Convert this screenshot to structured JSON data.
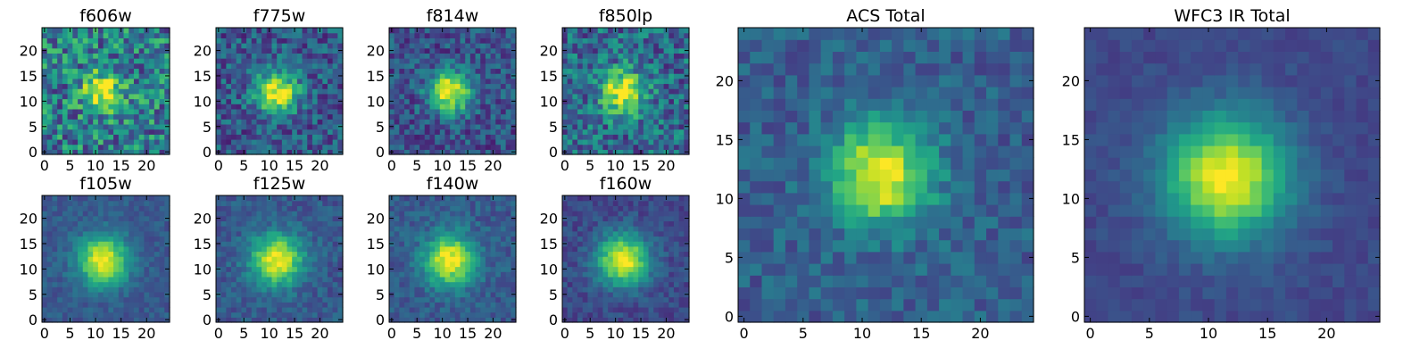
{
  "chart_data": [
    {
      "type": "heatmap",
      "title": "f606w",
      "xlim": [
        0,
        24
      ],
      "ylim": [
        0,
        24
      ],
      "xticks": [
        "0",
        "5",
        "10",
        "15",
        "20"
      ],
      "yticks": [
        "0",
        "5",
        "10",
        "15",
        "20"
      ],
      "grid": false,
      "colormap": "viridis",
      "peak": [
        11.6,
        12.0
      ],
      "sigma": 2.7,
      "noise": 0.3,
      "background": 0.42,
      "seed": 11
    },
    {
      "type": "heatmap",
      "title": "f775w",
      "xlim": [
        0,
        24
      ],
      "ylim": [
        0,
        24
      ],
      "xticks": [
        "0",
        "5",
        "10",
        "15",
        "20"
      ],
      "yticks": [
        "0",
        "5",
        "10",
        "15",
        "20"
      ],
      "grid": false,
      "colormap": "viridis",
      "peak": [
        11.5,
        11.8
      ],
      "sigma": 2.9,
      "noise": 0.2,
      "background": 0.28,
      "seed": 22
    },
    {
      "type": "heatmap",
      "title": "f814w",
      "xlim": [
        0,
        24
      ],
      "ylim": [
        0,
        24
      ],
      "xticks": [
        "0",
        "5",
        "10",
        "15",
        "20"
      ],
      "yticks": [
        "0",
        "5",
        "10",
        "15",
        "20"
      ],
      "grid": false,
      "colormap": "viridis",
      "peak": [
        11.5,
        11.8
      ],
      "sigma": 2.9,
      "noise": 0.18,
      "background": 0.25,
      "seed": 33
    },
    {
      "type": "heatmap",
      "title": "f850lp",
      "xlim": [
        0,
        24
      ],
      "ylim": [
        0,
        24
      ],
      "xticks": [
        "0",
        "5",
        "10",
        "15",
        "20"
      ],
      "yticks": [
        "0",
        "5",
        "10",
        "15",
        "20"
      ],
      "grid": false,
      "colormap": "viridis",
      "peak": [
        11.4,
        11.8
      ],
      "sigma": 3.0,
      "noise": 0.24,
      "background": 0.34,
      "seed": 44
    },
    {
      "type": "heatmap",
      "title": "f105w",
      "xlim": [
        0,
        24
      ],
      "ylim": [
        0,
        24
      ],
      "xticks": [
        "0",
        "5",
        "10",
        "15",
        "20"
      ],
      "yticks": [
        "0",
        "5",
        "10",
        "15",
        "20"
      ],
      "grid": false,
      "colormap": "viridis",
      "peak": [
        11.5,
        11.8
      ],
      "sigma": 3.4,
      "noise": 0.08,
      "background": 0.28,
      "seed": 55
    },
    {
      "type": "heatmap",
      "title": "f125w",
      "xlim": [
        0,
        24
      ],
      "ylim": [
        0,
        24
      ],
      "xticks": [
        "0",
        "5",
        "10",
        "15",
        "20"
      ],
      "yticks": [
        "0",
        "5",
        "10",
        "15",
        "20"
      ],
      "grid": false,
      "colormap": "viridis",
      "peak": [
        11.5,
        11.8
      ],
      "sigma": 3.5,
      "noise": 0.1,
      "background": 0.28,
      "seed": 66
    },
    {
      "type": "heatmap",
      "title": "f140w",
      "xlim": [
        0,
        24
      ],
      "ylim": [
        0,
        24
      ],
      "xticks": [
        "0",
        "5",
        "10",
        "15",
        "20"
      ],
      "yticks": [
        "0",
        "5",
        "10",
        "15",
        "20"
      ],
      "grid": false,
      "colormap": "viridis",
      "peak": [
        11.5,
        11.8
      ],
      "sigma": 3.5,
      "noise": 0.1,
      "background": 0.28,
      "seed": 77
    },
    {
      "type": "heatmap",
      "title": "f160w",
      "xlim": [
        0,
        24
      ],
      "ylim": [
        0,
        24
      ],
      "xticks": [
        "0",
        "5",
        "10",
        "15",
        "20"
      ],
      "yticks": [
        "0",
        "5",
        "10",
        "15",
        "20"
      ],
      "grid": false,
      "colormap": "viridis",
      "peak": [
        11.5,
        11.8
      ],
      "sigma": 3.5,
      "noise": 0.09,
      "background": 0.22,
      "seed": 88
    },
    {
      "type": "heatmap",
      "title": "ACS Total",
      "xlim": [
        0,
        24
      ],
      "ylim": [
        0,
        24
      ],
      "xticks": [
        "0",
        "5",
        "10",
        "15",
        "20"
      ],
      "yticks": [
        "0",
        "5",
        "10",
        "15",
        "20"
      ],
      "grid": false,
      "colormap": "viridis",
      "peak": [
        11.6,
        12.0
      ],
      "sigma": 3.0,
      "noise": 0.12,
      "background": 0.3,
      "seed": 99
    },
    {
      "type": "heatmap",
      "title": "WFC3 IR Total",
      "xlim": [
        0,
        24
      ],
      "ylim": [
        0,
        24
      ],
      "xticks": [
        "0",
        "5",
        "10",
        "15",
        "20"
      ],
      "yticks": [
        "0",
        "5",
        "10",
        "15",
        "20"
      ],
      "grid": false,
      "colormap": "viridis",
      "peak": [
        11.5,
        11.8
      ],
      "sigma": 3.6,
      "noise": 0.05,
      "background": 0.22,
      "seed": 111
    }
  ]
}
